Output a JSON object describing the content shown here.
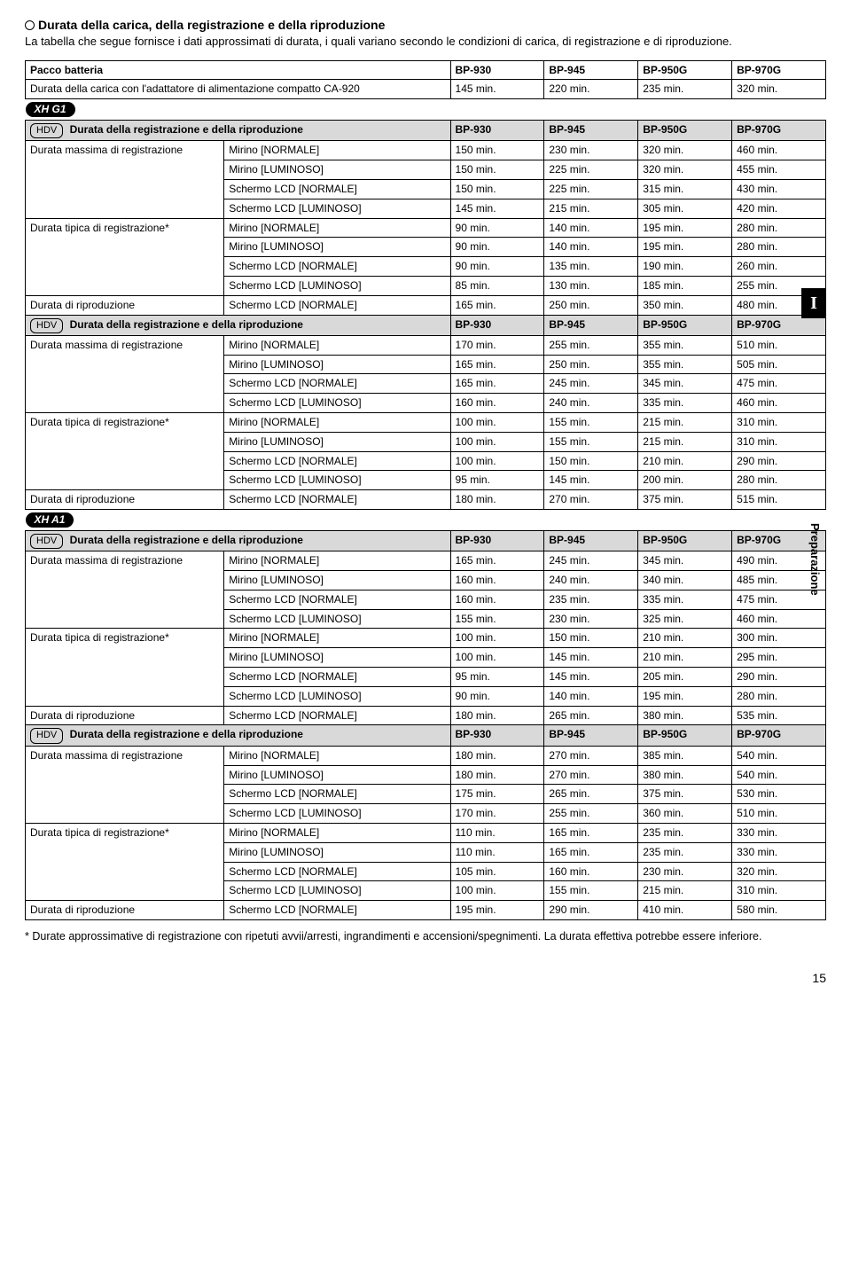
{
  "heading": "Durata della carica, della registrazione e della riproduzione",
  "intro": "La tabella che segue fornisce i dati approssimati di durata, i quali variano secondo le condizioni di carica, di registrazione e di riproduzione.",
  "sideI": "I",
  "sidePrep": "Preparazione",
  "pacco_label": "Pacco batteria",
  "charge_label": "Durata della carica con l'adattatore di alimentazione compatto CA-920",
  "batteries": [
    "BP-930",
    "BP-945",
    "BP-950G",
    "BP-970G"
  ],
  "charge_vals": [
    "145 min.",
    "220 min.",
    "235 min.",
    "320 min."
  ],
  "model_xhg1": "XH G1",
  "model_xha1": "XH A1",
  "hdv": "HDV",
  "section_title": "Durata della registrazione e della riproduzione",
  "row_labels": {
    "max": "Durata massima di registrazione",
    "typ": "Durata tipica di registrazione*",
    "play": "Durata di riproduzione"
  },
  "modes": {
    "mn": "Mirino [NORMALE]",
    "ml": "Mirino [LUMINOSO]",
    "ln": "Schermo LCD [NORMALE]",
    "ll": "Schermo LCD [LUMINOSO]"
  },
  "footnote": "*  Durate approssimative di registrazione con ripetuti avvii/arresti, ingrandimenti e accensioni/spegnimenti. La durata effettiva potrebbe essere inferiore.",
  "pagenum": "15",
  "xhg1_a": {
    "max": {
      "mn": [
        "150 min.",
        "230 min.",
        "320 min.",
        "460 min."
      ],
      "ml": [
        "150 min.",
        "225 min.",
        "320 min.",
        "455 min."
      ],
      "ln": [
        "150 min.",
        "225 min.",
        "315 min.",
        "430 min."
      ],
      "ll": [
        "145 min.",
        "215 min.",
        "305 min.",
        "420 min."
      ]
    },
    "typ": {
      "mn": [
        "90 min.",
        "140 min.",
        "195 min.",
        "280 min."
      ],
      "ml": [
        "90 min.",
        "140 min.",
        "195 min.",
        "280 min."
      ],
      "ln": [
        "90 min.",
        "135 min.",
        "190 min.",
        "260 min."
      ],
      "ll": [
        "85 min.",
        "130 min.",
        "185 min.",
        "255 min."
      ]
    },
    "play": {
      "ln": [
        "165 min.",
        "250 min.",
        "350 min.",
        "480 min."
      ]
    }
  },
  "xhg1_b": {
    "max": {
      "mn": [
        "170 min.",
        "255 min.",
        "355 min.",
        "510 min."
      ],
      "ml": [
        "165 min.",
        "250 min.",
        "355 min.",
        "505 min."
      ],
      "ln": [
        "165 min.",
        "245 min.",
        "345 min.",
        "475 min."
      ],
      "ll": [
        "160 min.",
        "240 min.",
        "335 min.",
        "460 min."
      ]
    },
    "typ": {
      "mn": [
        "100 min.",
        "155 min.",
        "215 min.",
        "310 min."
      ],
      "ml": [
        "100 min.",
        "155 min.",
        "215 min.",
        "310 min."
      ],
      "ln": [
        "100 min.",
        "150 min.",
        "210 min.",
        "290 min."
      ],
      "ll": [
        "95 min.",
        "145 min.",
        "200 min.",
        "280 min."
      ]
    },
    "play": {
      "ln": [
        "180 min.",
        "270 min.",
        "375 min.",
        "515 min."
      ]
    }
  },
  "xha1_a": {
    "max": {
      "mn": [
        "165 min.",
        "245 min.",
        "345 min.",
        "490 min."
      ],
      "ml": [
        "160 min.",
        "240 min.",
        "340 min.",
        "485 min."
      ],
      "ln": [
        "160 min.",
        "235 min.",
        "335 min.",
        "475 min."
      ],
      "ll": [
        "155 min.",
        "230 min.",
        "325 min.",
        "460 min."
      ]
    },
    "typ": {
      "mn": [
        "100 min.",
        "150 min.",
        "210 min.",
        "300 min."
      ],
      "ml": [
        "100 min.",
        "145 min.",
        "210 min.",
        "295 min."
      ],
      "ln": [
        "95 min.",
        "145 min.",
        "205 min.",
        "290 min."
      ],
      "ll": [
        "90 min.",
        "140 min.",
        "195 min.",
        "280 min."
      ]
    },
    "play": {
      "ln": [
        "180 min.",
        "265 min.",
        "380 min.",
        "535 min."
      ]
    }
  },
  "xha1_b": {
    "max": {
      "mn": [
        "180 min.",
        "270 min.",
        "385 min.",
        "540 min."
      ],
      "ml": [
        "180 min.",
        "270 min.",
        "380 min.",
        "540 min."
      ],
      "ln": [
        "175 min.",
        "265 min.",
        "375 min.",
        "530 min."
      ],
      "ll": [
        "170 min.",
        "255 min.",
        "360 min.",
        "510 min."
      ]
    },
    "typ": {
      "mn": [
        "110 min.",
        "165 min.",
        "235 min.",
        "330 min."
      ],
      "ml": [
        "110 min.",
        "165 min.",
        "235 min.",
        "330 min."
      ],
      "ln": [
        "105 min.",
        "160 min.",
        "230 min.",
        "320 min."
      ],
      "ll": [
        "100 min.",
        "155 min.",
        "215 min.",
        "310 min."
      ]
    },
    "play": {
      "ln": [
        "195 min.",
        "290 min.",
        "410 min.",
        "580 min."
      ]
    }
  }
}
